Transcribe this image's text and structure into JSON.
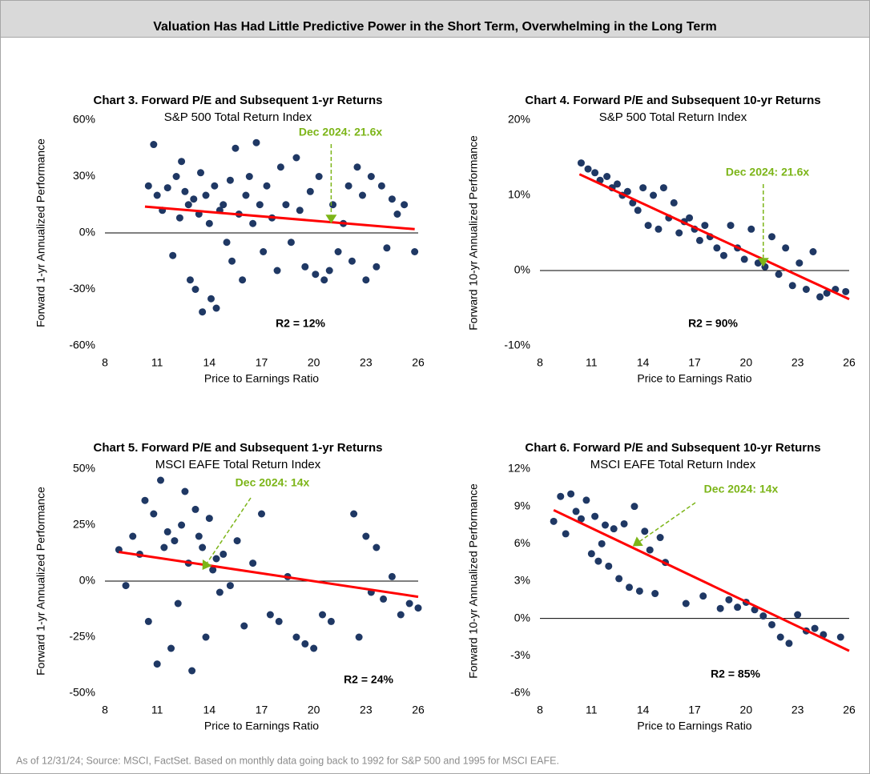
{
  "title": "Valuation Has Had Little Predictive Power in the Short Term, Overwhelming in the Long Term",
  "footer": "As of 12/31/24; Source: MSCI, FactSet. Based on monthly data going back to 1992 for S&P 500 and 1995 for MSCI EAFE.",
  "chart_data": [
    {
      "type": "scatter",
      "title": "Chart 3. Forward P/E and Subsequent 1-yr Returns",
      "subtitle": "S&P 500 Total Return Index",
      "xlabel": "Price to Earnings  Ratio",
      "ylabel": "Forward  1-yr Annualized  Performance",
      "color": "#1f3864",
      "xlim": [
        8,
        26
      ],
      "xticks": [
        8,
        11,
        14,
        17,
        20,
        23,
        26
      ],
      "ylim": [
        -60,
        60
      ],
      "yticks": [
        {
          "value": -60,
          "label": "-60%"
        },
        {
          "value": -30,
          "label": "-30%"
        },
        {
          "value": 0,
          "label": "0%"
        },
        {
          "value": 30,
          "label": "30%"
        },
        {
          "value": 60,
          "label": "60%"
        }
      ],
      "x": [
        10.5,
        10.8,
        11,
        11.3,
        11.6,
        11.9,
        12.1,
        12.3,
        12.4,
        12.6,
        12.8,
        12.9,
        13.1,
        13.2,
        13.4,
        13.5,
        13.6,
        13.8,
        14,
        14.1,
        14.3,
        14.4,
        14.6,
        14.8,
        15,
        15.2,
        15.3,
        15.5,
        15.7,
        15.9,
        16.1,
        16.3,
        16.5,
        16.7,
        16.9,
        17.1,
        17.3,
        17.6,
        17.9,
        18.1,
        18.4,
        18.7,
        19,
        19.2,
        19.5,
        19.8,
        20.1,
        20.3,
        20.6,
        20.9,
        21.1,
        21.4,
        21.7,
        22,
        22.2,
        22.5,
        22.8,
        23,
        23.3,
        23.6,
        23.9,
        24.2,
        24.5,
        24.8,
        25.2,
        25.8
      ],
      "values": [
        25,
        47,
        20,
        12,
        24,
        -12,
        30,
        8,
        38,
        22,
        15,
        -25,
        18,
        -30,
        10,
        32,
        -42,
        20,
        5,
        -35,
        25,
        -40,
        12,
        15,
        -5,
        28,
        -15,
        45,
        10,
        -25,
        20,
        30,
        5,
        48,
        15,
        -10,
        25,
        8,
        -20,
        35,
        15,
        -5,
        40,
        12,
        -18,
        22,
        -22,
        30,
        -25,
        -20,
        15,
        -10,
        5,
        25,
        -15,
        35,
        20,
        -25,
        30,
        -18,
        25,
        -8,
        18,
        10,
        15,
        -10
      ],
      "trendline": {
        "x": [
          10.3,
          25.8
        ],
        "y": [
          14,
          2
        ],
        "color": "#ff0000"
      },
      "annotation": {
        "text": "Dec 2024: 21.6x",
        "x": 21,
        "y": 5,
        "color": "#7cb518"
      },
      "stat_label": "R2 = 12%"
    },
    {
      "type": "scatter",
      "title": "Chart 4. Forward P/E and Subsequent 10-yr Returns",
      "subtitle": "S&P 500 Total Return Index",
      "xlabel": "Price to Earnings  Ratio",
      "ylabel": "Forward  10-yr Annualized  Performance",
      "color": "#1f3864",
      "xlim": [
        8,
        26
      ],
      "xticks": [
        8,
        11,
        14,
        17,
        20,
        23,
        26
      ],
      "ylim": [
        -10,
        20
      ],
      "yticks": [
        {
          "value": -10,
          "label": "-10%"
        },
        {
          "value": 0,
          "label": "0%"
        },
        {
          "value": 10,
          "label": "10%"
        },
        {
          "value": 20,
          "label": "20%"
        }
      ],
      "x": [
        10.4,
        10.8,
        11.2,
        11.5,
        11.9,
        12.2,
        12.5,
        12.8,
        13.1,
        13.4,
        13.7,
        14,
        14.3,
        14.6,
        14.9,
        15.2,
        15.5,
        15.8,
        16.1,
        16.4,
        16.7,
        17,
        17.3,
        17.6,
        17.9,
        18.3,
        18.7,
        19.1,
        19.5,
        19.9,
        20.3,
        20.7,
        21.1,
        21.5,
        21.9,
        22.3,
        22.7,
        23.1,
        23.5,
        23.9,
        24.3,
        24.7,
        25.2,
        25.8
      ],
      "values": [
        14.3,
        13.5,
        13,
        12,
        12.5,
        11,
        11.5,
        10,
        10.5,
        9,
        8,
        11,
        6,
        10,
        5.5,
        11,
        7,
        9,
        5,
        6.5,
        7,
        5.5,
        4,
        6,
        4.5,
        3,
        2,
        6,
        3,
        1.5,
        5.5,
        1,
        0.5,
        4.5,
        -0.5,
        3,
        -2,
        1,
        -2.5,
        2.5,
        -3.5,
        -3,
        -2.5,
        -2.8
      ],
      "trendline": {
        "x": [
          10.3,
          26
        ],
        "y": [
          12.8,
          -3.8
        ],
        "color": "#ff0000"
      },
      "annotation": {
        "text": "Dec 2024: 21.6x",
        "x": 21,
        "y": 0.5,
        "color": "#7cb518"
      },
      "stat_label": "R2 = 90%"
    },
    {
      "type": "scatter",
      "title": "Chart 5. Forward P/E and Subsequent 1-yr Returns",
      "subtitle": "MSCI EAFE Total Return Index",
      "xlabel": "Price to Earnings  Ratio",
      "ylabel": "Forward  1-yr Annualized  Performance",
      "color": "#1f3864",
      "xlim": [
        8,
        26
      ],
      "xticks": [
        8,
        11,
        14,
        17,
        20,
        23,
        26
      ],
      "ylim": [
        -50,
        50
      ],
      "yticks": [
        {
          "value": -50,
          "label": "-50%"
        },
        {
          "value": -25,
          "label": "-25%"
        },
        {
          "value": 0,
          "label": "0%"
        },
        {
          "value": 25,
          "label": "25%"
        },
        {
          "value": 50,
          "label": "50%"
        }
      ],
      "x": [
        8.8,
        9.2,
        9.6,
        10,
        10.3,
        10.5,
        10.8,
        11,
        11.2,
        11.4,
        11.6,
        11.8,
        12,
        12.2,
        12.4,
        12.6,
        12.8,
        13,
        13.2,
        13.4,
        13.6,
        13.8,
        14,
        14.2,
        14.4,
        14.6,
        14.8,
        15.2,
        15.6,
        16,
        16.5,
        17,
        17.5,
        18,
        18.5,
        19,
        19.5,
        20,
        20.5,
        21,
        22.3,
        22.6,
        23,
        23.3,
        23.6,
        24,
        24.5,
        25,
        25.5,
        26
      ],
      "values": [
        14,
        -2,
        20,
        12,
        36,
        -18,
        30,
        -37,
        45,
        15,
        22,
        -30,
        18,
        -10,
        25,
        40,
        8,
        -40,
        32,
        20,
        15,
        -25,
        28,
        5,
        10,
        -5,
        12,
        -2,
        18,
        -20,
        8,
        30,
        -15,
        -18,
        2,
        -25,
        -28,
        -30,
        -15,
        -18,
        30,
        -25,
        20,
        -5,
        15,
        -8,
        2,
        -15,
        -10,
        -12
      ],
      "trendline": {
        "x": [
          8.8,
          26
        ],
        "y": [
          13,
          -7
        ],
        "color": "#ff0000"
      },
      "annotation": {
        "text": "Dec 2024: 14x",
        "x": 13.6,
        "y": 5,
        "color": "#7cb518"
      },
      "stat_label": "R2 = 24%"
    },
    {
      "type": "scatter",
      "title": "Chart 6. Forward P/E and Subsequent 10-yr Returns",
      "subtitle": "MSCI EAFE Total Return Index",
      "xlabel": "Price to Earnings  Ratio",
      "ylabel": "Forward  10-yr Annualized  Performance",
      "color": "#1f3864",
      "xlim": [
        8,
        26
      ],
      "xticks": [
        8,
        11,
        14,
        17,
        20,
        23,
        26
      ],
      "ylim": [
        -6,
        12
      ],
      "yticks": [
        {
          "value": -6,
          "label": "-6%"
        },
        {
          "value": -3,
          "label": "-3%"
        },
        {
          "value": 0,
          "label": "0%"
        },
        {
          "value": 3,
          "label": "3%"
        },
        {
          "value": 6,
          "label": "6%"
        },
        {
          "value": 9,
          "label": "9%"
        },
        {
          "value": 12,
          "label": "12%"
        }
      ],
      "x": [
        8.8,
        9.2,
        9.5,
        9.8,
        10.1,
        10.4,
        10.7,
        11,
        11.2,
        11.4,
        11.6,
        11.8,
        12,
        12.3,
        12.6,
        12.9,
        13.2,
        13.5,
        13.8,
        14.1,
        14.4,
        14.7,
        15,
        15.3,
        16.5,
        17.5,
        18.5,
        19,
        19.5,
        20,
        20.5,
        21,
        21.5,
        22,
        22.5,
        23,
        23.5,
        24,
        24.5,
        25.5
      ],
      "values": [
        7.8,
        9.8,
        6.8,
        10,
        8.6,
        8,
        9.5,
        5.2,
        8.2,
        4.6,
        6,
        7.5,
        4.2,
        7.2,
        3.2,
        7.6,
        2.5,
        9,
        2.2,
        7,
        5.5,
        2,
        6.5,
        4.5,
        1.2,
        1.8,
        0.8,
        1.5,
        0.9,
        1.3,
        0.7,
        0.2,
        -0.5,
        -1.5,
        -2,
        0.3,
        -1,
        -0.8,
        -1.3,
        -1.5
      ],
      "trendline": {
        "x": [
          8.8,
          26
        ],
        "y": [
          8.7,
          -2.6
        ],
        "color": "#ff0000"
      },
      "annotation": {
        "text": "Dec 2024: 14x",
        "x": 13.4,
        "y": 5.8,
        "color": "#7cb518"
      },
      "stat_label": "R2 = 85%"
    }
  ]
}
